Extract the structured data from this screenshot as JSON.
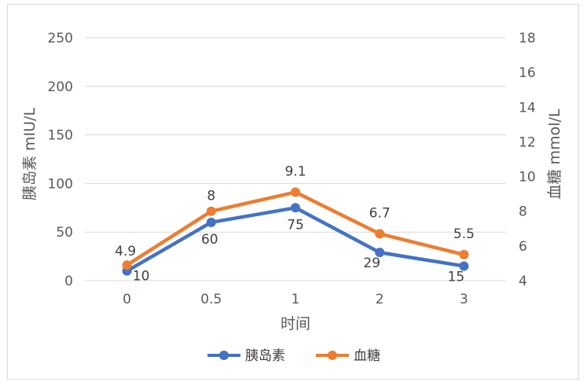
{
  "chart_data": {
    "type": "line",
    "categories": [
      "0",
      "0.5",
      "1",
      "2",
      "3"
    ],
    "xlabel": "时间",
    "ylabel_left": "胰岛素 mIU/L",
    "ylabel_right": "血糖 mmol/L",
    "y_left": {
      "min": 0,
      "max": 250,
      "ticks": [
        0,
        50,
        100,
        150,
        200,
        250
      ]
    },
    "y_right": {
      "min": 4,
      "max": 18,
      "ticks": [
        4,
        6,
        8,
        10,
        12,
        14,
        16,
        18
      ]
    },
    "grid": true,
    "legend_position": "bottom",
    "series": [
      {
        "name": "胰岛素",
        "axis": "left",
        "color": "#4472c4",
        "values": [
          10,
          60,
          75,
          29,
          15
        ],
        "labels": [
          "10",
          "60",
          "75",
          "29",
          "15"
        ]
      },
      {
        "name": "血糖",
        "axis": "right",
        "color": "#ed7d31",
        "values": [
          4.9,
          8,
          9.1,
          6.7,
          5.5
        ],
        "labels": [
          "4.9",
          "8",
          "9.1",
          "6.7",
          "5.5"
        ]
      }
    ]
  }
}
